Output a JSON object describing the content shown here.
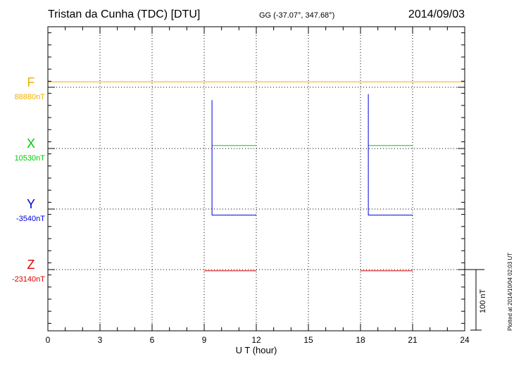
{
  "header": {
    "title": "Tristan da Cunha (TDC)  [DTU]",
    "coords": "GG (-37.07°, 347.68°)",
    "date": "2014/09/03"
  },
  "side": {
    "plotted": "Plotted at 2014/10/04 02:03 UT",
    "scale_label": "100 nT"
  },
  "chart_data": {
    "type": "line",
    "title": "Tristan da Cunha (TDC)  [DTU]",
    "xlabel": "U T (hour)",
    "ylabel": "",
    "xlim": [
      0,
      24
    ],
    "xticks": [
      0,
      3,
      6,
      9,
      12,
      15,
      18,
      21,
      24
    ],
    "grid": true,
    "scale_bar_nT": 100,
    "components": [
      {
        "name": "F",
        "baseline_label": "88880nT",
        "color": "#f0b000"
      },
      {
        "name": "X",
        "baseline_label": "10530nT",
        "color": "#00cc00"
      },
      {
        "name": "Y",
        "baseline_label": "-3540nT",
        "color": "#0000dd"
      },
      {
        "name": "Z",
        "baseline_label": "-23140nT",
        "color": "#dd0000"
      }
    ],
    "series": [
      {
        "name": "F",
        "color": "#f0b000",
        "segments": [
          [
            [
              0,
              9
            ],
            [
              24,
              9
            ]
          ]
        ]
      },
      {
        "name": "X",
        "color": "#00cc00",
        "segments": [
          [
            [
              9.45,
              5
            ],
            [
              12,
              5
            ]
          ],
          [
            [
              18.45,
              5
            ],
            [
              21,
              5
            ]
          ]
        ]
      },
      {
        "name": "Y",
        "color": "#0000dd",
        "segments": [
          [
            [
              9.45,
              180
            ],
            [
              9.45,
              -10
            ],
            [
              12,
              -10
            ]
          ],
          [
            [
              18.45,
              190
            ],
            [
              18.45,
              -10
            ],
            [
              21,
              -10
            ]
          ]
        ]
      },
      {
        "name": "Z",
        "color": "#dd0000",
        "segments": [
          [
            [
              9,
              -2
            ],
            [
              12,
              -2
            ]
          ],
          [
            [
              18,
              -2
            ],
            [
              21,
              -2
            ]
          ]
        ]
      }
    ]
  }
}
